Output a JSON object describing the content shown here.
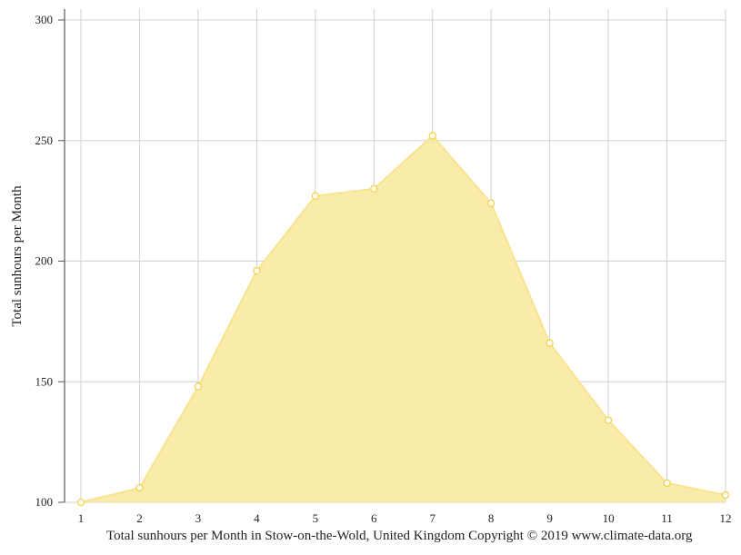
{
  "chart_data": {
    "type": "area",
    "x": [
      1,
      2,
      3,
      4,
      5,
      6,
      7,
      8,
      9,
      10,
      11,
      12
    ],
    "series": [
      {
        "values": [
          100,
          106,
          148,
          196,
          227,
          230,
          252,
          224,
          166,
          134,
          108,
          103
        ]
      }
    ],
    "ylabel": "Total sunhours per Month",
    "xlabel": "",
    "ylim": [
      100,
      300
    ],
    "yticks": [
      100,
      150,
      200,
      250,
      300
    ],
    "xlim": [
      1,
      12
    ],
    "grid": true,
    "colors": {
      "fill": "#f8e9a1",
      "line": "#f8e38e",
      "marker_fill": "#ffffff",
      "marker_stroke": "#f5d24a",
      "grid": "#d0d0d0",
      "axis": "#555555"
    }
  },
  "caption": "Total sunhours per Month in Stow-on-the-Wold, United Kingdom Copyright © 2019 www.climate-data.org"
}
